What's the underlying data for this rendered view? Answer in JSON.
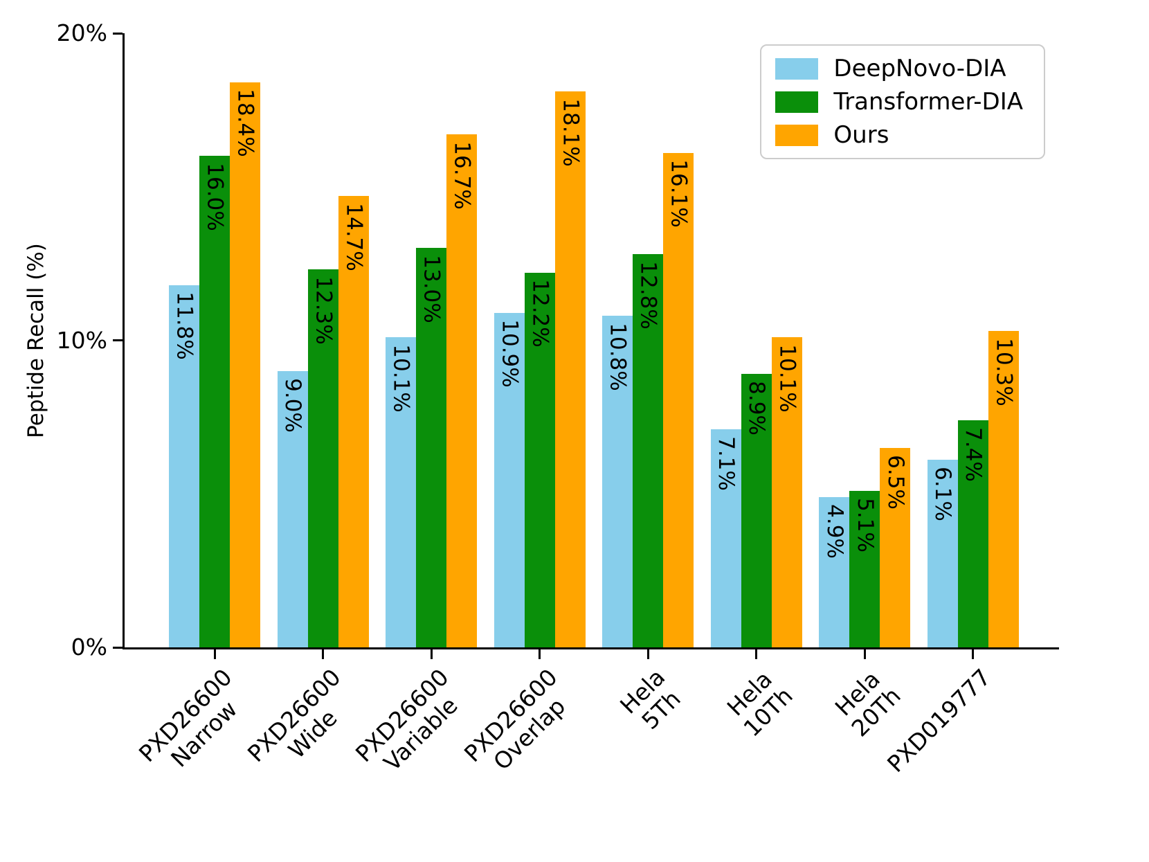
{
  "chart_data": {
    "type": "bar",
    "title": "",
    "xlabel": "",
    "ylabel": "Peptide Recall (%)",
    "ylim": [
      0,
      20
    ],
    "grid": false,
    "legend_position": "upper right",
    "yticks": [
      {
        "value": 0,
        "label": "0%"
      },
      {
        "value": 10,
        "label": "10%"
      },
      {
        "value": 20,
        "label": "20%"
      }
    ],
    "categories": [
      {
        "lines": [
          "PXD26600",
          "Narrow"
        ]
      },
      {
        "lines": [
          "PXD26600",
          "Wide"
        ]
      },
      {
        "lines": [
          "PXD26600",
          "Variable"
        ]
      },
      {
        "lines": [
          "PXD26600",
          "Overlap"
        ]
      },
      {
        "lines": [
          "Hela",
          "5Th"
        ]
      },
      {
        "lines": [
          "Hela",
          "10Th"
        ]
      },
      {
        "lines": [
          "Hela",
          "20Th"
        ]
      },
      {
        "lines": [
          "PXD019777"
        ]
      }
    ],
    "series": [
      {
        "name": "DeepNovo-DIA",
        "color": "#87CEEB",
        "values": [
          11.8,
          9.0,
          10.1,
          10.9,
          10.8,
          7.1,
          4.9,
          6.1
        ],
        "labels": [
          "11.8%",
          "9.0%",
          "10.1%",
          "10.9%",
          "10.8%",
          "7.1%",
          "4.9%",
          "6.1%"
        ]
      },
      {
        "name": "Transformer-DIA",
        "color": "#0a8f0a",
        "values": [
          16.0,
          12.3,
          13.0,
          12.2,
          12.8,
          8.9,
          5.1,
          7.4
        ],
        "labels": [
          "16.0%",
          "12.3%",
          "13.0%",
          "12.2%",
          "12.8%",
          "8.9%",
          "5.1%",
          "7.4%"
        ]
      },
      {
        "name": "Ours",
        "color": "#FFA500",
        "values": [
          18.4,
          14.7,
          16.7,
          18.1,
          16.1,
          10.1,
          6.5,
          10.3
        ],
        "labels": [
          "18.4%",
          "14.7%",
          "16.7%",
          "18.1%",
          "16.1%",
          "10.1%",
          "6.5%",
          "10.3%"
        ]
      }
    ]
  }
}
